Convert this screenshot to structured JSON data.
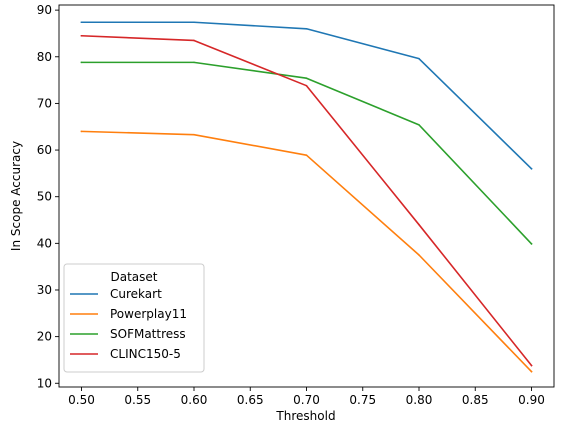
{
  "chart_data": {
    "type": "line",
    "title": "",
    "xlabel": "Threshold",
    "ylabel": "In Scope Accuracy",
    "x": [
      0.5,
      0.6,
      0.7,
      0.8,
      0.9
    ],
    "x_ticks": [
      0.5,
      0.55,
      0.6,
      0.65,
      0.7,
      0.75,
      0.8,
      0.85,
      0.9
    ],
    "x_tick_labels": [
      "0.50",
      "0.55",
      "0.60",
      "0.65",
      "0.70",
      "0.75",
      "0.80",
      "0.85",
      "0.90"
    ],
    "y_ticks": [
      10,
      20,
      30,
      40,
      50,
      60,
      70,
      80,
      90
    ],
    "y_tick_labels": [
      "10",
      "20",
      "30",
      "40",
      "50",
      "60",
      "70",
      "80",
      "90"
    ],
    "xlim": [
      0.48,
      0.92
    ],
    "ylim": [
      9.2,
      91.1
    ],
    "grid": false,
    "legend": {
      "title": "Dataset",
      "placement": "lower-left"
    },
    "series": [
      {
        "name": "Curekart",
        "color": "#1f77b4",
        "values": [
          87.4,
          87.4,
          86.0,
          79.6,
          56.0
        ]
      },
      {
        "name": "Powerplay11",
        "color": "#ff7f0e",
        "values": [
          64.0,
          63.3,
          58.9,
          37.5,
          12.5
        ]
      },
      {
        "name": "SOFMattress",
        "color": "#2ca02c",
        "values": [
          78.8,
          78.8,
          75.4,
          65.4,
          39.9
        ]
      },
      {
        "name": "CLINC150-5",
        "color": "#d62728",
        "values": [
          84.5,
          83.5,
          73.8,
          44.0,
          13.8
        ]
      }
    ]
  }
}
